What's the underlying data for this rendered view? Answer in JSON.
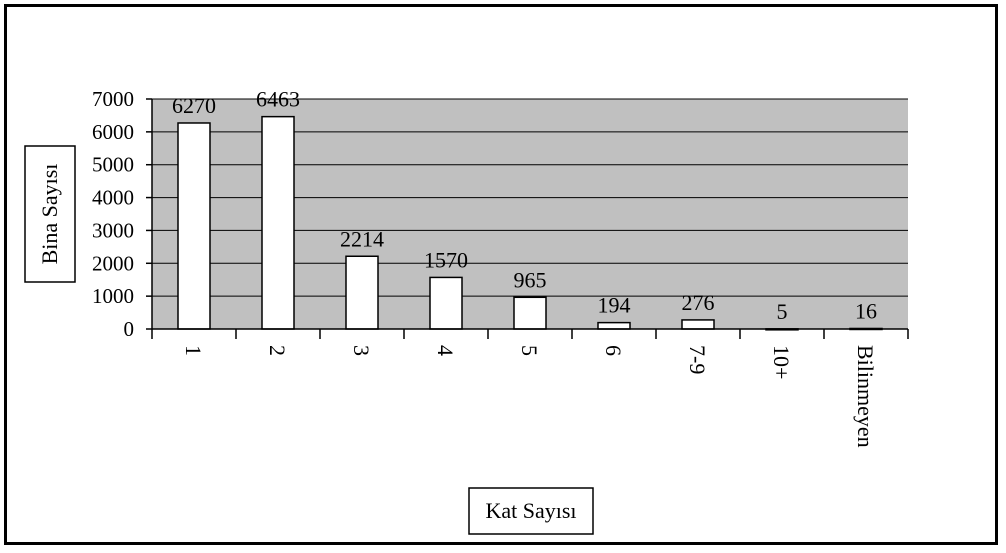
{
  "chart_data": {
    "type": "bar",
    "categories": [
      "1",
      "2",
      "3",
      "4",
      "5",
      "6",
      "7-9",
      "10+",
      "Bilinmeyen"
    ],
    "values": [
      6270,
      6463,
      2214,
      1570,
      965,
      194,
      276,
      5,
      16
    ],
    "data_labels": [
      "6270",
      "6463",
      "2214",
      "1570",
      "965",
      "194",
      "276",
      "5",
      "16"
    ],
    "xlabel": "Kat Sayısı",
    "ylabel": "Bina Sayısı",
    "ylim": [
      0,
      7000
    ],
    "yticks": [
      0,
      1000,
      2000,
      3000,
      4000,
      5000,
      6000,
      7000
    ],
    "grid": true,
    "legend": "none",
    "colors": {
      "plot_background": "#c0c0c0",
      "bar_fill": "#ffffff",
      "bar_stroke": "#000000",
      "gridline": "#000000"
    }
  }
}
